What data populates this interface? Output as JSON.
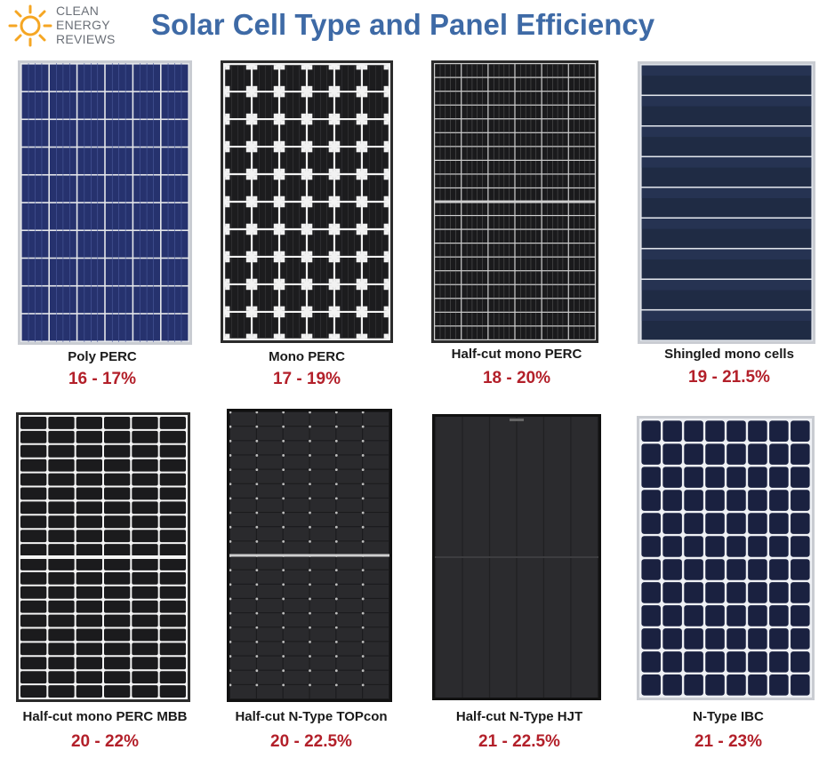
{
  "header": {
    "title": "Solar Cell Type and Panel Efficiency",
    "logo": {
      "lines": [
        "CLEAN",
        "ENERGY",
        "REVIEWS"
      ],
      "icon": "sun-icon",
      "sun_color": "#f5a623"
    }
  },
  "colors": {
    "title": "#3e6aa6",
    "efficiency": "#b3202a",
    "label": "#1a1a1a"
  },
  "panels": [
    {
      "name": "Poly PERC",
      "efficiency": "16 - 17%",
      "style": "poly"
    },
    {
      "name": "Mono PERC",
      "efficiency": "17 - 19%",
      "style": "mono"
    },
    {
      "name": "Half-cut mono PERC",
      "efficiency": "18 - 20%",
      "style": "halfcut"
    },
    {
      "name": "Shingled  mono cells",
      "efficiency": "19 - 21.5%",
      "style": "shingled"
    },
    {
      "name": "Half-cut mono PERC MBB",
      "efficiency": "20 - 22%",
      "style": "halfcut-mbb"
    },
    {
      "name": "Half-cut N-Type  TOPcon",
      "efficiency": "20 - 22.5%",
      "style": "topcon"
    },
    {
      "name": "Half-cut  N-Type  HJT",
      "efficiency": "21 - 22.5%",
      "style": "hjt"
    },
    {
      "name": "N-Type  IBC",
      "efficiency": "21 - 23%",
      "style": "ibc"
    }
  ]
}
